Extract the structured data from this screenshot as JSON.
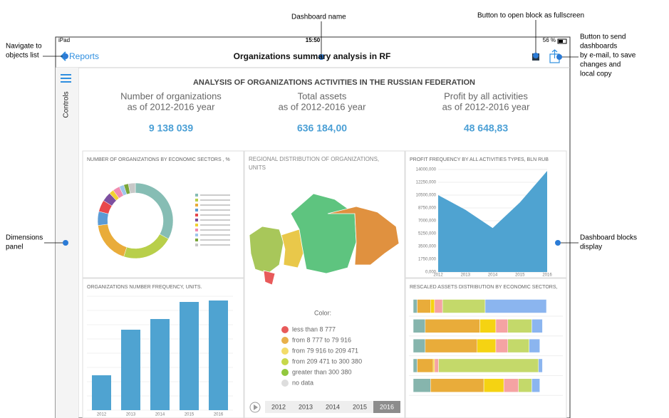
{
  "annotations": {
    "dashboard_name": "Dashboard name",
    "fullscreen_button": "Button to open block as fullscreen",
    "navigate": [
      "Navigate to",
      "objects list"
    ],
    "send_button": [
      "Button to send",
      "dashboards",
      "by e-mail, to save",
      "changes and",
      "local copy"
    ],
    "dimensions_panel": [
      "Dimensions",
      "panel"
    ],
    "blocks_display": [
      "Dashboard blocks",
      "display"
    ]
  },
  "status_bar": {
    "device": "iPad",
    "time": "15:50",
    "battery": "56 %"
  },
  "nav_bar": {
    "back": "Reports",
    "title": "Organizations summary analysis in RF"
  },
  "side_panel": {
    "label": "Controls"
  },
  "dashboard": {
    "title": "ANALYSIS OF ORGANIZATIONS ACTIVITIES IN THE RUSSIAN FEDERATION",
    "kpis": [
      {
        "label": [
          "Number of organizations",
          "as of 2012-2016 year"
        ],
        "value": "9 138 039"
      },
      {
        "label": [
          "Total assets",
          "as of 2012-2016 year"
        ],
        "value": "636 184,00"
      },
      {
        "label": [
          "Profit by all activities",
          "as of 2012-2016 year"
        ],
        "value": "48 648,83"
      }
    ]
  },
  "chart_data": [
    {
      "type": "pie",
      "title": "NUMBER OF ORGANIZATIONS BY ECONOMIC SECTORS , %",
      "values": [
        33,
        22,
        18,
        6,
        5,
        4,
        2,
        3,
        2,
        2,
        3
      ],
      "colors": [
        "#86bdb4",
        "#b8cf4a",
        "#e9ac3a",
        "#5b9bd5",
        "#e8474b",
        "#7d4fa0",
        "#f2d230",
        "#f08cb0",
        "#9ec6ec",
        "#7aa63a",
        "#c8c8c8"
      ]
    },
    {
      "type": "map",
      "title": [
        "REGIONAL DISTRIBUTION OF ORGANIZATIONS,",
        "UNITS"
      ],
      "legend_title": "Color:",
      "legend": [
        {
          "label": "less than 8 777",
          "color": "#e85a5a"
        },
        {
          "label": "from 8 777 to 79 916",
          "color": "#e8b04a"
        },
        {
          "label": "from 79 916 to 209 471",
          "color": "#f3dc6a"
        },
        {
          "label": "from 209 471 to 300 380",
          "color": "#c7d84a"
        },
        {
          "label": "greater than 300 380",
          "color": "#92c83e"
        },
        {
          "label": "no data",
          "color": "#dddddd"
        }
      ],
      "years": [
        "2012",
        "2013",
        "2014",
        "2015",
        "2016"
      ],
      "selected": 4
    },
    {
      "type": "area",
      "title": "PROFIT FREQUENCY BY ALL ACTIVITIES TYPES, BLN RUB",
      "x": [
        2012,
        2013,
        2014,
        2015,
        2016
      ],
      "values": [
        10500,
        8500,
        6000,
        9500,
        13800
      ],
      "color": "#4fa3d1",
      "xlim": [
        2012,
        2016
      ],
      "ylim": [
        0,
        14000
      ],
      "yticks": [
        {
          "value": 0,
          "label": "0,000"
        },
        {
          "value": 1750,
          "label": "1750,000"
        },
        {
          "value": 3500,
          "label": "3500,000"
        },
        {
          "value": 5250,
          "label": "5250,000"
        },
        {
          "value": 7000,
          "label": "7000,000"
        },
        {
          "value": 8750,
          "label": "8750,000"
        },
        {
          "value": 10500,
          "label": "10500,000"
        },
        {
          "value": 12250,
          "label": "12250,000"
        },
        {
          "value": 14000,
          "label": "14000,000"
        }
      ]
    },
    {
      "type": "bar",
      "title": "ORGANIZATIONS NUMBER FREQUENCY, UNITS.",
      "categories": [
        "2012",
        "2013",
        "2014",
        "2015",
        "2016"
      ],
      "values": [
        49,
        113,
        128,
        152,
        154
      ],
      "color": "#4fa3d1",
      "ylim": [
        0,
        160
      ]
    },
    {
      "type": "stacked_barh",
      "title": "RESCALED ASSETS DISTRIBUTION BY ECONOMIC SECTORS,",
      "xlim": [
        0,
        100
      ],
      "series": [
        {
          "color": "#86b5ad",
          "values": [
            3,
            9,
            9,
            3,
            13
          ]
        },
        {
          "color": "#e9ac3a",
          "values": [
            10,
            41,
            39,
            12,
            40
          ]
        },
        {
          "color": "#f5d312",
          "values": [
            3,
            12,
            14,
            1,
            15
          ]
        },
        {
          "color": "#f5a3a3",
          "values": [
            6,
            9,
            9,
            3,
            11
          ]
        },
        {
          "color": "#c4d96a",
          "values": [
            32,
            18,
            16,
            75,
            10
          ]
        },
        {
          "color": "#8bb5ef",
          "values": [
            46,
            8,
            8,
            3,
            6
          ]
        }
      ]
    }
  ]
}
